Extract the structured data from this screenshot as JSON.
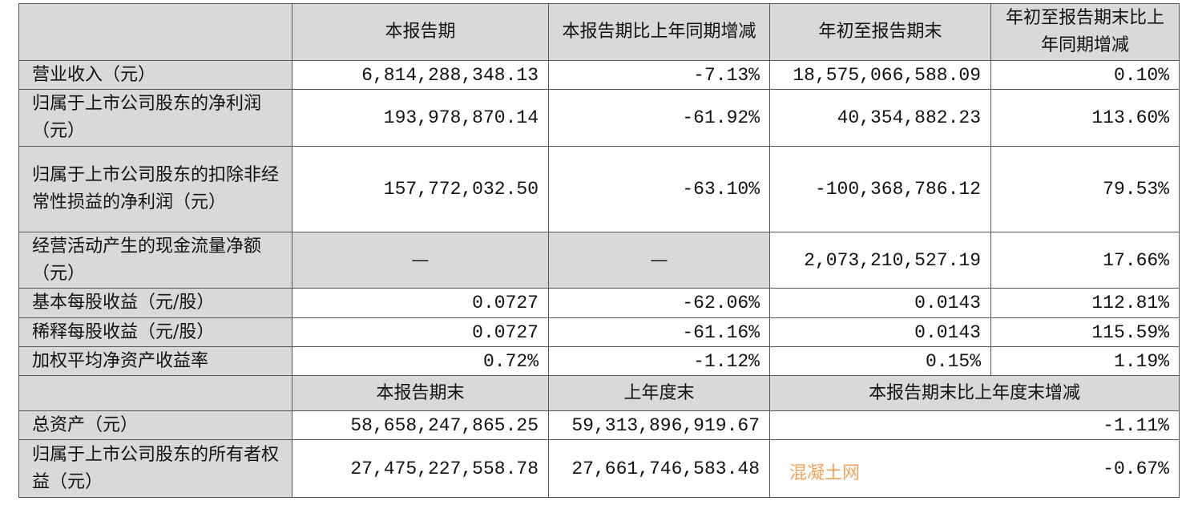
{
  "header1": [
    "",
    "本报告期",
    "本报告期比上年同期增减",
    "年初至报告期末",
    "年初至报告期末比上年同期增减"
  ],
  "rows1": [
    {
      "label": "营业收入（元）",
      "v": [
        "6,814,288,348.13",
        "-7.13%",
        "18,575,066,588.09",
        "0.10%"
      ]
    },
    {
      "label": "归属于上市公司股东的净利润（元）",
      "v": [
        "193,978,870.14",
        "-61.92%",
        "40,354,882.23",
        "113.60%"
      ]
    },
    {
      "label": "归属于上市公司股东的扣除非经常性损益的净利润（元）",
      "v": [
        "157,772,032.50",
        "-63.10%",
        "-100,368,786.12",
        "79.53%"
      ]
    },
    {
      "label": "经营活动产生的现金流量净额（元）",
      "v": [
        "—",
        "—",
        "2,073,210,527.19",
        "17.66%"
      ]
    },
    {
      "label": "基本每股收益（元/股）",
      "v": [
        "0.0727",
        "-62.06%",
        "0.0143",
        "112.81%"
      ]
    },
    {
      "label": "稀释每股收益（元/股）",
      "v": [
        "0.0727",
        "-61.16%",
        "0.0143",
        "115.59%"
      ]
    },
    {
      "label": "加权平均净资产收益率",
      "v": [
        "0.72%",
        "-1.12%",
        "0.15%",
        "1.19%"
      ]
    }
  ],
  "header2": [
    "",
    "本报告期末",
    "上年度末",
    "本报告期末比上年度末增减"
  ],
  "rows2": [
    {
      "label": "总资产（元）",
      "v": [
        "58,658,247,865.25",
        "59,313,896,919.67",
        "-1.11%"
      ]
    },
    {
      "label": "归属于上市公司股东的所有者权益（元）",
      "v": [
        "27,475,227,558.78",
        "27,661,746,583.48",
        "-0.67%"
      ]
    }
  ],
  "watermark": "混凝土网",
  "colors": {
    "header_bg": "#d9d9d9",
    "watermark": "#f2a25c"
  }
}
